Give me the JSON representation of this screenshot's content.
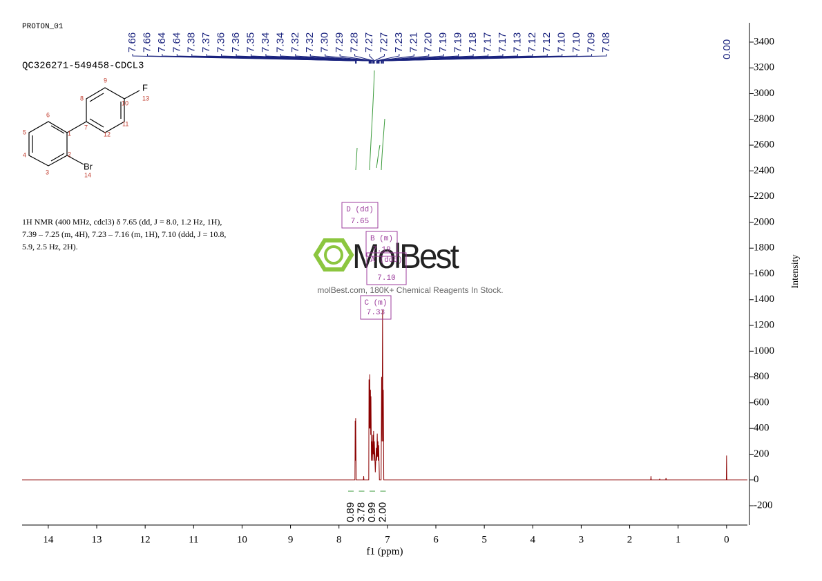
{
  "chart_data": {
    "type": "line",
    "title": "PROTON_01",
    "subtitle": "QC326271-549458-CDCL3",
    "x_label": "f1 (ppm)",
    "y_label": "Intensity",
    "color": "#8b0000",
    "x": [
      14.54,
      7.67,
      7.665,
      7.66,
      7.655,
      7.645,
      7.495,
      7.49,
      7.485,
      7.385,
      7.38,
      7.372,
      7.365,
      7.357,
      7.35,
      7.345,
      7.34,
      7.33,
      7.32,
      7.31,
      7.3,
      7.292,
      7.285,
      7.278,
      7.27,
      7.25,
      7.23,
      7.22,
      7.21,
      7.203,
      7.195,
      7.188,
      7.18,
      7.165,
      7.13,
      7.12,
      7.11,
      7.1,
      7.092,
      7.085,
      7.075,
      1.565,
      1.56,
      1.555,
      1.385,
      1.38,
      1.375,
      1.255,
      1.25,
      1.245,
      0.005,
      0,
      -0.005,
      -0.43
    ],
    "values": [
      0,
      0,
      460,
      150,
      480,
      0,
      0,
      30,
      0,
      0,
      780,
      400,
      820,
      400,
      700,
      350,
      650,
      150,
      300,
      150,
      350,
      200,
      380,
      150,
      300,
      60,
      250,
      150,
      360,
      180,
      300,
      150,
      270,
      0,
      0,
      800,
      300,
      1320,
      300,
      700,
      0,
      0,
      30,
      0,
      0,
      10,
      0,
      0,
      15,
      0,
      0,
      190,
      0,
      0
    ],
    "xlim": [
      14.54,
      -0.43
    ],
    "xticks": [
      14,
      13,
      12,
      11,
      10,
      9,
      8,
      7,
      6,
      5,
      4,
      3,
      2,
      1,
      0
    ],
    "ylim": [
      -350,
      3550
    ],
    "yticks": [
      -200,
      0,
      200,
      400,
      600,
      800,
      1000,
      1200,
      1400,
      1600,
      1800,
      2000,
      2200,
      2400,
      2600,
      2800,
      3000,
      3200,
      3400
    ],
    "peak_labels": [
      "7.66",
      "7.66",
      "7.64",
      "7.64",
      "7.38",
      "7.37",
      "7.36",
      "7.36",
      "7.35",
      "7.34",
      "7.34",
      "7.32",
      "7.32",
      "7.30",
      "7.29",
      "7.28",
      "7.27",
      "7.27",
      "7.23",
      "7.21",
      "7.20",
      "7.19",
      "7.19",
      "7.18",
      "7.17",
      "7.17",
      "7.13",
      "7.12",
      "7.12",
      "7.10",
      "7.10",
      "7.09",
      "7.08"
    ],
    "reference_label": "0.00",
    "integrals": [
      "0.89",
      "3.78",
      "0.99",
      "2.00"
    ],
    "annotations": [
      {
        "label": "D (dd)",
        "shift": "7.65"
      },
      {
        "label": "B (m)",
        "shift": "7.19"
      },
      {
        "label": "A (ddd)",
        "shift": "7.10"
      },
      {
        "label": "C (m)",
        "shift": "7.33"
      }
    ],
    "description": [
      "1H NMR (400 MHz, cdcl3) δ 7.65 (dd, J = 8.0, 1.2 Hz, 1H),",
      "7.39 – 7.25 (m, 4H), 7.23 – 7.16 (m, 1H), 7.10 (ddd, J = 10.8,",
      "5.9, 2.5 Hz, 2H)."
    ],
    "structure": {
      "atoms": [
        "1",
        "2",
        "3",
        "4",
        "5",
        "6",
        "7",
        "8",
        "9",
        "10",
        "11",
        "12",
        "13",
        "14"
      ],
      "F": "F",
      "Br": "Br"
    },
    "watermark": {
      "logo": "MolBest",
      "tagline": "molBest.com, 180K+ Chemical Reagents In Stock."
    }
  }
}
